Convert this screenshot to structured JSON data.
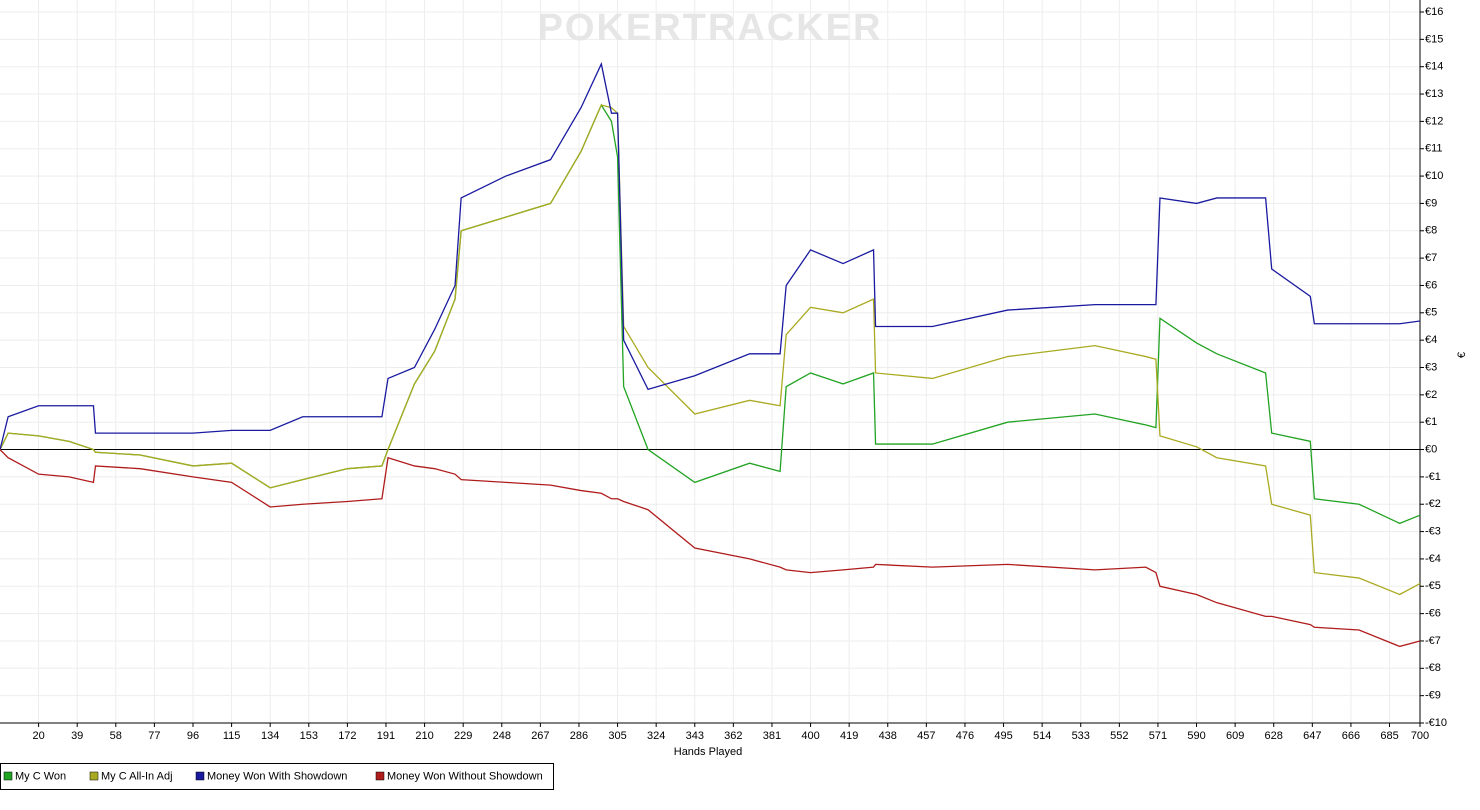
{
  "chart_data": {
    "type": "line",
    "watermark": "POKERTRACKER",
    "xlabel": "Hands Played",
    "ylabel": "€",
    "x": [
      1,
      5,
      20,
      35,
      47,
      48,
      70,
      96,
      115,
      134,
      150,
      172,
      189,
      192,
      205,
      215,
      225,
      228,
      250,
      272,
      287,
      297,
      302,
      305,
      308,
      320,
      343,
      370,
      385,
      388,
      400,
      416,
      431,
      432,
      460,
      497,
      540,
      565,
      570,
      572,
      590,
      600,
      624,
      627,
      646,
      648,
      670,
      690,
      700
    ],
    "series": [
      {
        "name": "My C Won",
        "color": "#22a322",
        "values": [
          0,
          0.6,
          0.5,
          0.3,
          0,
          -0.1,
          -0.2,
          -0.6,
          -0.5,
          -1.4,
          -1.1,
          -0.7,
          -0.6,
          0,
          2.4,
          3.6,
          5.5,
          8.0,
          8.5,
          9.0,
          10.9,
          12.6,
          12.0,
          10.7,
          2.3,
          0,
          -1.2,
          -0.5,
          -0.8,
          2.3,
          2.8,
          2.4,
          2.8,
          0.2,
          0.2,
          1.0,
          1.3,
          0.9,
          0.8,
          4.8,
          3.9,
          3.5,
          2.8,
          0.6,
          0.3,
          -1.8,
          -2.0,
          -2.7,
          -2.4
        ]
      },
      {
        "name": "My C All-In Adj",
        "color": "#aaaa22",
        "values": [
          0,
          0.6,
          0.5,
          0.3,
          0,
          -0.1,
          -0.2,
          -0.6,
          -0.5,
          -1.4,
          -1.1,
          -0.7,
          -0.6,
          0,
          2.4,
          3.6,
          5.5,
          8.0,
          8.5,
          9.0,
          10.9,
          12.6,
          12.5,
          12.3,
          4.5,
          3.0,
          1.3,
          1.8,
          1.6,
          4.2,
          5.2,
          5.0,
          5.5,
          2.8,
          2.6,
          3.4,
          3.8,
          3.4,
          3.3,
          0.5,
          0.1,
          -0.3,
          -0.6,
          -2.0,
          -2.4,
          -4.5,
          -4.7,
          -5.3,
          -4.9
        ]
      },
      {
        "name": "Money Won With Showdown",
        "color": "#1a1aa0",
        "values": [
          0,
          1.2,
          1.6,
          1.6,
          1.6,
          0.6,
          0.6,
          0.6,
          0.7,
          0.7,
          1.2,
          1.2,
          1.2,
          2.6,
          3.0,
          4.4,
          6.0,
          9.2,
          10.0,
          10.6,
          12.5,
          14.1,
          12.3,
          12.3,
          4.0,
          2.2,
          2.7,
          3.5,
          3.5,
          6.0,
          7.3,
          6.8,
          7.3,
          4.5,
          4.5,
          5.1,
          5.3,
          5.3,
          5.3,
          9.2,
          9.0,
          9.2,
          9.2,
          6.6,
          5.6,
          4.6,
          4.6,
          4.6,
          4.7
        ]
      },
      {
        "name": "Money Won Without Showdown",
        "color": "#b01c1c",
        "values": [
          0,
          -0.3,
          -0.9,
          -1.0,
          -1.2,
          -0.6,
          -0.7,
          -1.0,
          -1.2,
          -2.1,
          -2.0,
          -1.9,
          -1.8,
          -0.3,
          -0.6,
          -0.7,
          -0.9,
          -1.1,
          -1.2,
          -1.3,
          -1.5,
          -1.6,
          -1.8,
          -1.8,
          -1.9,
          -2.2,
          -3.6,
          -4.0,
          -4.3,
          -4.4,
          -4.5,
          -4.4,
          -4.3,
          -4.2,
          -4.3,
          -4.2,
          -4.4,
          -4.3,
          -4.5,
          -5.0,
          -5.3,
          -5.6,
          -6.1,
          -6.1,
          -6.4,
          -6.5,
          -6.6,
          -7.2,
          -7.0
        ]
      }
    ],
    "xlim": [
      1,
      700
    ],
    "xticks": [
      20,
      39,
      58,
      77,
      96,
      115,
      134,
      153,
      172,
      191,
      210,
      229,
      248,
      267,
      286,
      305,
      324,
      343,
      362,
      381,
      400,
      419,
      438,
      457,
      476,
      495,
      514,
      533,
      552,
      571,
      590,
      609,
      628,
      647,
      666,
      685,
      700
    ],
    "ylim": [
      -10,
      16
    ],
    "yticks": [
      {
        "value": 16,
        "label": "€16"
      },
      {
        "value": 15,
        "label": "€15"
      },
      {
        "value": 14,
        "label": "€14"
      },
      {
        "value": 13,
        "label": "€13"
      },
      {
        "value": 12,
        "label": "€12"
      },
      {
        "value": 11,
        "label": "€11"
      },
      {
        "value": 10,
        "label": "€10"
      },
      {
        "value": 9,
        "label": "€9"
      },
      {
        "value": 8,
        "label": "€8"
      },
      {
        "value": 7,
        "label": "€7"
      },
      {
        "value": 6,
        "label": "€6"
      },
      {
        "value": 5,
        "label": "€5"
      },
      {
        "value": 4,
        "label": "€4"
      },
      {
        "value": 3,
        "label": "€3"
      },
      {
        "value": 2,
        "label": "€2"
      },
      {
        "value": 1,
        "label": "€1"
      },
      {
        "value": 0,
        "label": "€0"
      },
      {
        "value": -1,
        "label": "-€1"
      },
      {
        "value": -2,
        "label": "-€2"
      },
      {
        "value": -3,
        "label": "-€3"
      },
      {
        "value": -4,
        "label": "-€4"
      },
      {
        "value": -5,
        "label": "-€5"
      },
      {
        "value": -6,
        "label": "-€6"
      },
      {
        "value": -7,
        "label": "-€7"
      },
      {
        "value": -8,
        "label": "-€8"
      },
      {
        "value": -9,
        "label": "-€9"
      },
      {
        "value": -10,
        "label": "-€10"
      }
    ],
    "grid": true
  }
}
